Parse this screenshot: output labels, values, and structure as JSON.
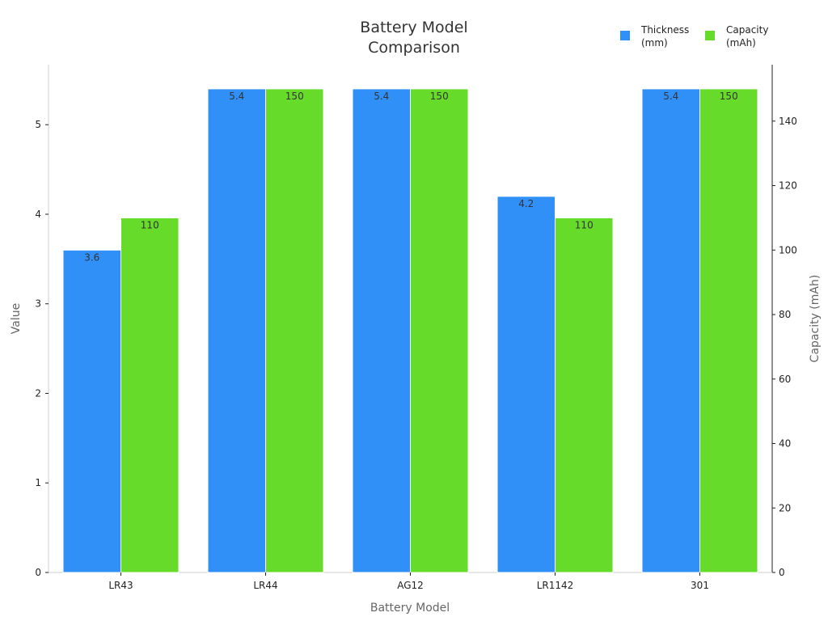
{
  "chart_data": {
    "type": "bar",
    "title": "Battery Model\nComparison",
    "xlabel": "Battery Model",
    "ylabel": "Value",
    "y2label": "Capacity (mAh)",
    "categories": [
      "LR43",
      "LR44",
      "AG12",
      "LR1142",
      "301"
    ],
    "series": [
      {
        "name": "Thickness\n(mm)",
        "axis": "left",
        "color": "#3190f8",
        "values": [
          3.6,
          5.4,
          5.4,
          4.2,
          5.4
        ],
        "labels": [
          "3.6",
          "5.4",
          "5.4",
          "4.2",
          "5.4"
        ]
      },
      {
        "name": "Capacity\n(mAh)",
        "axis": "right",
        "color": "#66db29",
        "values": [
          110,
          150,
          150,
          110,
          150
        ],
        "labels": [
          "110",
          "150",
          "150",
          "110",
          "150"
        ]
      }
    ],
    "ylim": [
      0,
      5.67
    ],
    "yticks": [
      0,
      1,
      2,
      3,
      4,
      5
    ],
    "y2lim": [
      0,
      157.5
    ],
    "y2ticks": [
      0,
      20,
      40,
      60,
      80,
      100,
      120,
      140
    ],
    "grid": false,
    "legend_position": "top-right"
  }
}
